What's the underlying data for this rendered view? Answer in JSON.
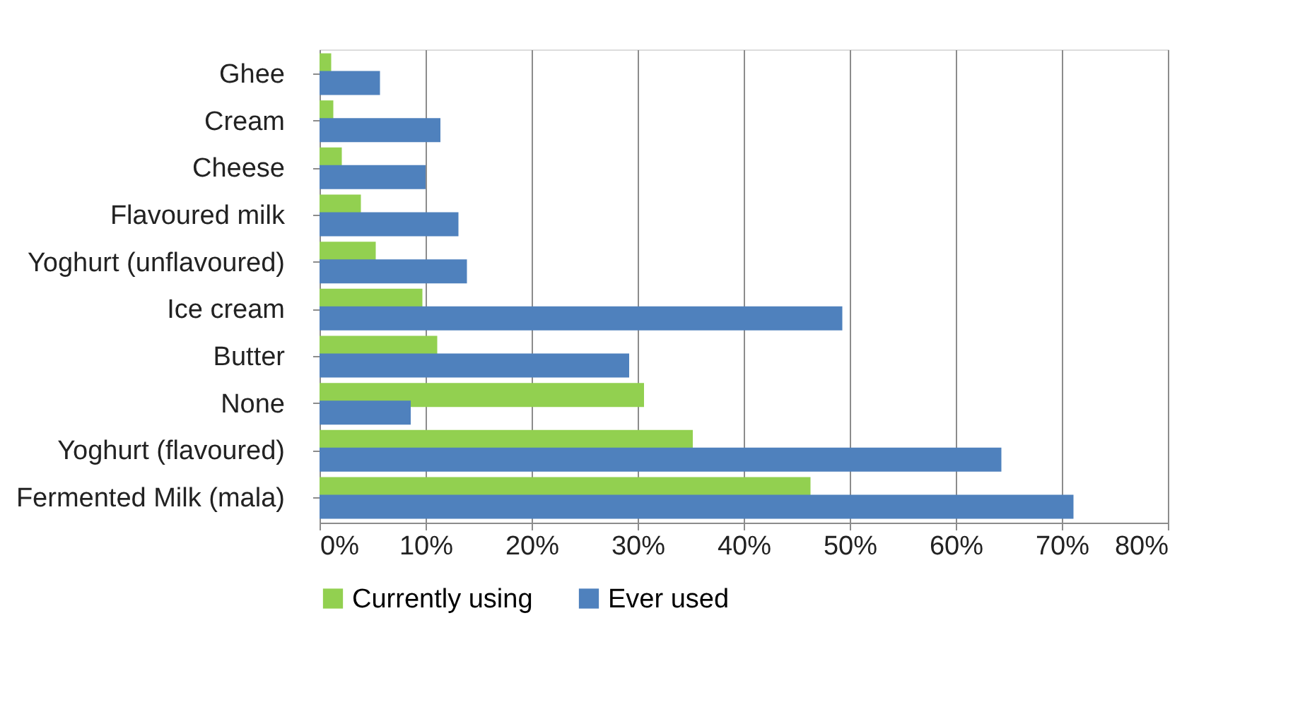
{
  "chart_data": {
    "type": "bar",
    "orientation": "horizontal",
    "categories": [
      "Ghee",
      "Cream",
      "Cheese",
      "Flavoured milk",
      "Yoghurt (unflavoured)",
      "Ice cream",
      "Butter",
      "None",
      "Yoghurt (flavoured)",
      "Fermented Milk (mala)"
    ],
    "series": [
      {
        "name": "Currently using",
        "color": "#92d050",
        "values": [
          1.1,
          1.3,
          2.1,
          3.9,
          5.3,
          9.7,
          11.1,
          30.6,
          35.2,
          46.3
        ]
      },
      {
        "name": "Ever used",
        "color": "#4f81bd",
        "values": [
          5.7,
          11.4,
          10.0,
          13.1,
          13.9,
          49.3,
          29.2,
          8.6,
          64.3,
          71.1
        ]
      }
    ],
    "xlim": [
      0,
      80
    ],
    "xticks": [
      {
        "value": 0,
        "label": "0%"
      },
      {
        "value": 10,
        "label": "10%"
      },
      {
        "value": 20,
        "label": "20%"
      },
      {
        "value": 30,
        "label": "30%"
      },
      {
        "value": 40,
        "label": "40%"
      },
      {
        "value": 50,
        "label": "50%"
      },
      {
        "value": 60,
        "label": "60%"
      },
      {
        "value": 70,
        "label": "70%"
      },
      {
        "value": 80,
        "label": "80%"
      }
    ],
    "grid": "x",
    "legend": "bottom"
  }
}
